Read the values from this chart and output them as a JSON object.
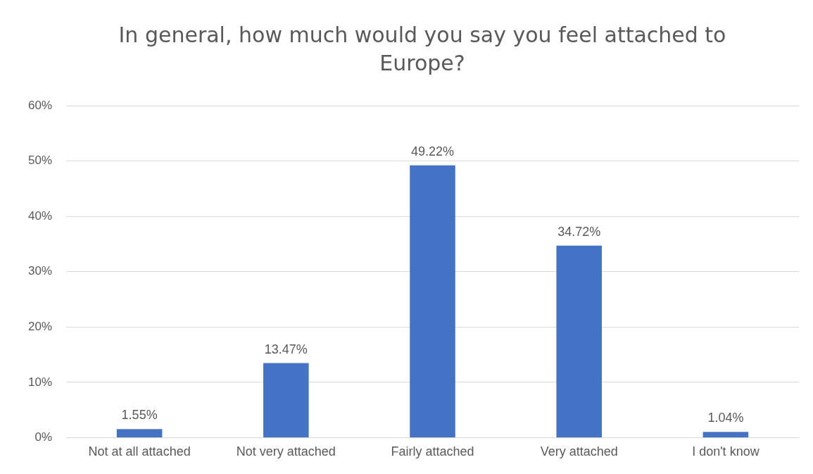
{
  "chart_data": {
    "type": "bar",
    "title": "In general, how much would you say you feel attached to Europe?",
    "categories": [
      "Not at all attached",
      "Not very attached",
      "Fairly attached",
      "Very attached",
      "I don't know"
    ],
    "values": [
      1.55,
      13.47,
      49.22,
      34.72,
      1.04
    ],
    "value_labels": [
      "1.55%",
      "13.47%",
      "49.22%",
      "34.72%",
      "1.04%"
    ],
    "color": "#4472c4",
    "ylim": [
      0,
      60
    ],
    "yticks": [
      {
        "value": 0,
        "label": "0%"
      },
      {
        "value": 10,
        "label": "10%"
      },
      {
        "value": 20,
        "label": "20%"
      },
      {
        "value": 30,
        "label": "30%"
      },
      {
        "value": 40,
        "label": "40%"
      },
      {
        "value": 50,
        "label": "50%"
      },
      {
        "value": 60,
        "label": "60%"
      }
    ],
    "grid": "y",
    "legend": false
  }
}
